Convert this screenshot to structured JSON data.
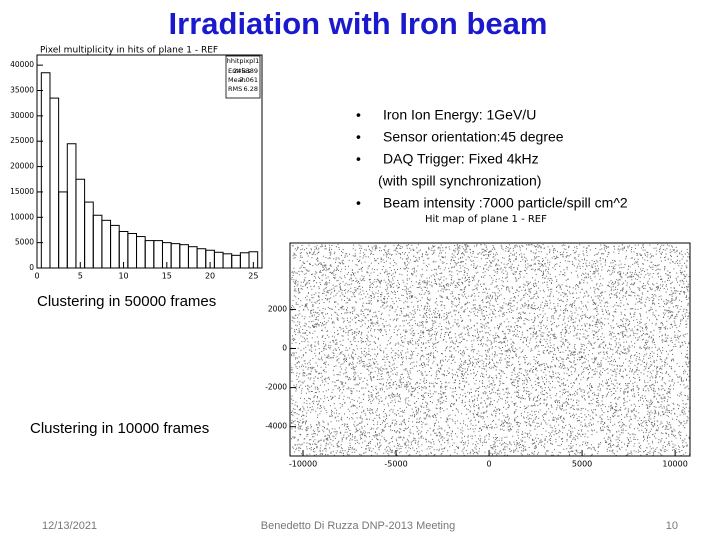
{
  "slide": {
    "title": "Irradiation with Iron beam",
    "bullets": [
      "Iron Ion Energy: 1GeV/U",
      "Sensor orientation:45 degree",
      "DAQ Trigger:  Fixed 4kHz",
      "Beam intensity :7000 particle/spill cm^2"
    ],
    "bullet_note": "(with spill synchronization)",
    "captions": [
      "Clustering in 50000 frames",
      "Clustering in 10000 frames"
    ],
    "footer": {
      "date": "12/13/2021",
      "author": "Benedetto Di Ruzza DNP-2013 Meeting",
      "page": "10"
    }
  },
  "chart_data": [
    {
      "type": "histogram",
      "title": "Pixel multiplicity in hits of plane 1 - REF",
      "stats": {
        "name": "hhitpixpl1",
        "rows": [
          [
            "Entries",
            "245389"
          ],
          [
            "Mean",
            "7.061"
          ],
          [
            "RMS",
            "6.28"
          ]
        ]
      },
      "bins": [
        0.5,
        1.5,
        2.5,
        3.5,
        4.5,
        5.5,
        6.5,
        7.5,
        8.5,
        9.5,
        10.5,
        11.5,
        12.5,
        13.5,
        14.5,
        15.5,
        16.5,
        17.5,
        18.5,
        19.5,
        20.5,
        21.5,
        22.5,
        23.5,
        24.5,
        25.5
      ],
      "values": [
        38500,
        33500,
        15000,
        24500,
        17500,
        13000,
        10400,
        9400,
        8400,
        7200,
        6800,
        6200,
        5400,
        5400,
        5000,
        4800,
        4600,
        4200,
        3800,
        3500,
        3100,
        2800,
        2500,
        3000,
        3200
      ],
      "color": "#000000",
      "xlim": [
        0,
        26
      ],
      "ylim": [
        0,
        42000
      ],
      "xticks": [
        0,
        5,
        10,
        15,
        20,
        25
      ],
      "yticks": [
        0,
        5000,
        10000,
        15000,
        20000,
        25000,
        30000,
        35000,
        40000
      ]
    },
    {
      "type": "scatter",
      "title": "Hit map of plane 1 - REF",
      "color": "#333333",
      "xlim": [
        -10700,
        10800
      ],
      "ylim": [
        -5500,
        5400
      ],
      "xticks": [
        -10000,
        -5000,
        0,
        5000,
        10000
      ],
      "yticks": [
        -4000,
        -2000,
        0,
        2000
      ]
    }
  ]
}
